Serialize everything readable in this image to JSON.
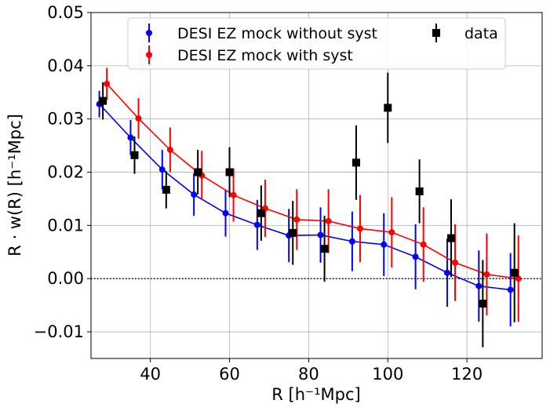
{
  "chart_data": {
    "type": "scatter",
    "xlabel": "R [h⁻¹Mpc]",
    "ylabel": "R · w(R) [h⁻¹Mpc]",
    "xlim": [
      25,
      139
    ],
    "ylim": [
      -0.015,
      0.05
    ],
    "xticks": [
      40,
      60,
      80,
      100,
      120
    ],
    "yticks": [
      -0.01,
      0.0,
      0.01,
      0.02,
      0.03,
      0.04,
      0.05
    ],
    "ytick_labels": [
      "−0.01",
      "0.00",
      "0.01",
      "0.02",
      "0.03",
      "0.04",
      "0.05"
    ],
    "grid": true,
    "legend_position": "top",
    "zero_line": {
      "y": 0,
      "style": "dotted",
      "color": "#000000"
    },
    "series": [
      {
        "name": "DESI EZ mock without syst",
        "color": "#0000ff",
        "marker": "circle",
        "line": true,
        "x": [
          27.1,
          35.0,
          43.0,
          51.0,
          59.0,
          67.0,
          75.0,
          83.0,
          91.0,
          99.0,
          107.0,
          115.0,
          123.0,
          131.0
        ],
        "y": [
          0.0328,
          0.0265,
          0.0205,
          0.0158,
          0.0123,
          0.0101,
          0.0081,
          0.0082,
          0.007,
          0.0064,
          0.0041,
          0.0011,
          -0.0014,
          -0.0021
        ],
        "yerr": [
          0.0025,
          0.0033,
          0.0037,
          0.004,
          0.0044,
          0.0047,
          0.005,
          0.0052,
          0.0056,
          0.0059,
          0.0061,
          0.0064,
          0.0067,
          0.0069
        ]
      },
      {
        "name": "DESI EZ mock with syst",
        "color": "#ff0000",
        "marker": "circle",
        "line": true,
        "x": [
          29.0,
          37.0,
          45.0,
          53.0,
          61.0,
          69.0,
          77.0,
          85.0,
          93.0,
          101.0,
          109.0,
          117.0,
          125.0,
          133.0
        ],
        "y": [
          0.0366,
          0.0301,
          0.0242,
          0.0194,
          0.0157,
          0.0132,
          0.0111,
          0.0108,
          0.0094,
          0.0087,
          0.0064,
          0.003,
          0.0008,
          0.0
        ],
        "yerr": [
          0.003,
          0.0038,
          0.0042,
          0.0046,
          0.005,
          0.0054,
          0.0057,
          0.006,
          0.0063,
          0.0066,
          0.007,
          0.0072,
          0.0077,
          0.0081
        ]
      },
      {
        "name": "data",
        "color": "#000000",
        "marker": "square",
        "line": false,
        "x": [
          28.0,
          36.0,
          44.0,
          52.0,
          60.0,
          68.0,
          76.0,
          84.0,
          92.0,
          100.0,
          108.0,
          116.0,
          124.0,
          132.0
        ],
        "y": [
          0.0334,
          0.0232,
          0.0167,
          0.02,
          0.02,
          0.0123,
          0.0086,
          0.0056,
          0.0218,
          0.0321,
          0.0164,
          0.0076,
          -0.0047,
          0.0011
        ],
        "yerr": [
          0.0035,
          0.0035,
          0.0035,
          0.0042,
          0.0047,
          0.0052,
          0.006,
          0.0062,
          0.007,
          0.0066,
          0.006,
          0.0073,
          0.0082,
          0.0093
        ]
      }
    ]
  }
}
